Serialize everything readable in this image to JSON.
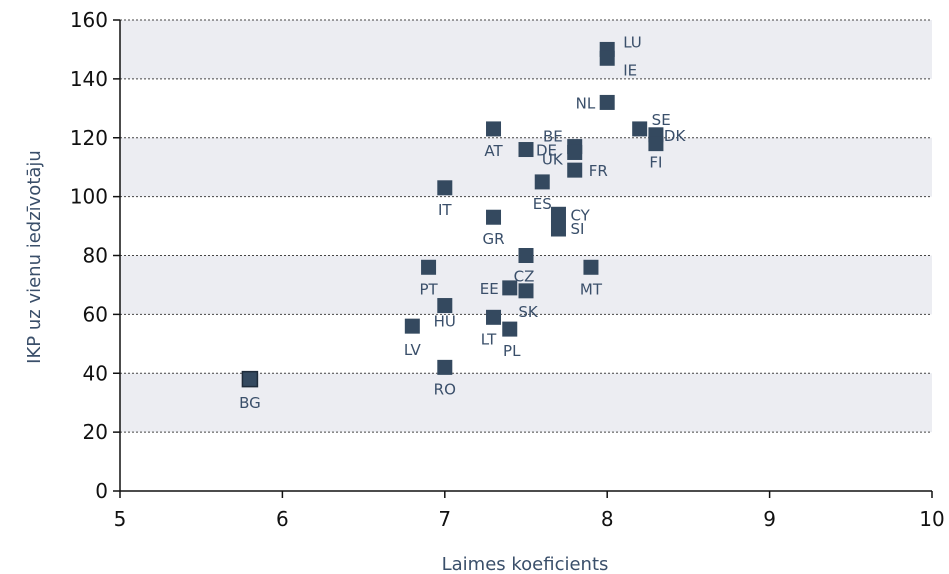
{
  "chart_data": {
    "type": "scatter",
    "xlabel": "Laimes koeficients",
    "ylabel": "IKP uz vienu iedzīvotāju",
    "xlim": [
      5,
      10
    ],
    "ylim": [
      0,
      160
    ],
    "xticks": [
      5,
      6,
      7,
      8,
      9,
      10
    ],
    "yticks": [
      0,
      20,
      40,
      60,
      80,
      100,
      120,
      140,
      160
    ],
    "grid": "horizontal dotted, alternating shaded bands",
    "marker_color": "#34495f",
    "band_color": "#ecedf2",
    "points": [
      {
        "label": "LU",
        "x": 8.0,
        "y": 150
      },
      {
        "label": "IE",
        "x": 8.0,
        "y": 147
      },
      {
        "label": "NL",
        "x": 8.0,
        "y": 132
      },
      {
        "label": "SE",
        "x": 8.2,
        "y": 123
      },
      {
        "label": "DK",
        "x": 8.3,
        "y": 121
      },
      {
        "label": "FI",
        "x": 8.3,
        "y": 118
      },
      {
        "label": "AT",
        "x": 7.3,
        "y": 123
      },
      {
        "label": "BE",
        "x": 7.8,
        "y": 117
      },
      {
        "label": "UK",
        "x": 7.8,
        "y": 115
      },
      {
        "label": "DE",
        "x": 7.5,
        "y": 116
      },
      {
        "label": "FR",
        "x": 7.8,
        "y": 109
      },
      {
        "label": "ES",
        "x": 7.6,
        "y": 105
      },
      {
        "label": "IT",
        "x": 7.0,
        "y": 103
      },
      {
        "label": "CY",
        "x": 7.7,
        "y": 94
      },
      {
        "label": "SI",
        "x": 7.7,
        "y": 89
      },
      {
        "label": "GR",
        "x": 7.3,
        "y": 93
      },
      {
        "label": "CZ",
        "x": 7.5,
        "y": 80
      },
      {
        "label": "MT",
        "x": 7.9,
        "y": 76
      },
      {
        "label": "PT",
        "x": 6.9,
        "y": 76
      },
      {
        "label": "EE",
        "x": 7.4,
        "y": 69
      },
      {
        "label": "SK",
        "x": 7.5,
        "y": 68
      },
      {
        "label": "HU",
        "x": 7.0,
        "y": 63
      },
      {
        "label": "LT",
        "x": 7.3,
        "y": 59
      },
      {
        "label": "PL",
        "x": 7.4,
        "y": 55
      },
      {
        "label": "LV",
        "x": 6.8,
        "y": 56
      },
      {
        "label": "RO",
        "x": 7.0,
        "y": 42
      },
      {
        "label": "BG",
        "x": 5.8,
        "y": 38
      }
    ]
  }
}
